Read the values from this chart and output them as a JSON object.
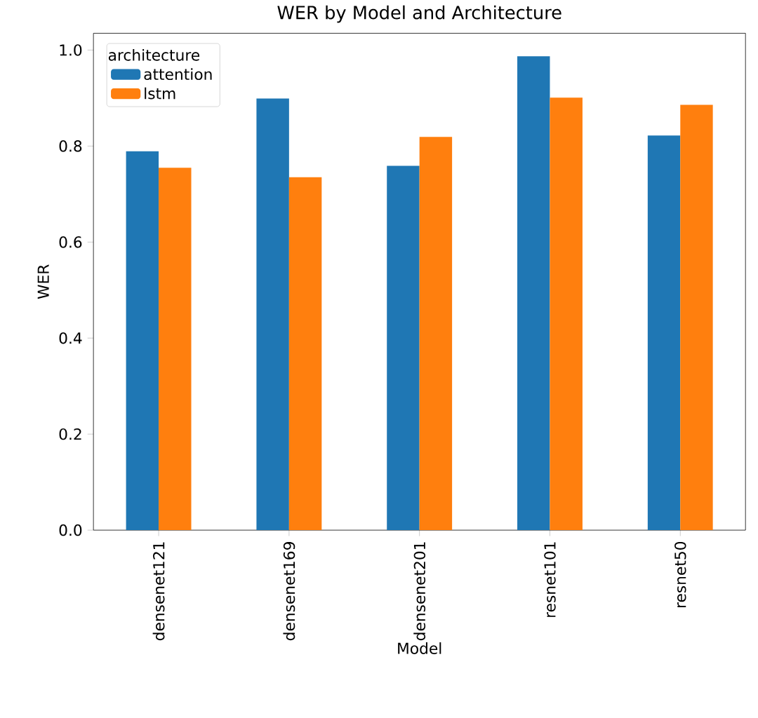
{
  "chart_data": {
    "type": "bar",
    "title": "WER by Model and Architecture",
    "xlabel": "Model",
    "ylabel": "WER",
    "legend_title": "architecture",
    "legend": "top left",
    "categories": [
      "densenet121",
      "densenet169",
      "densenet201",
      "resnet101",
      "resnet50"
    ],
    "series": [
      {
        "name": "attention",
        "color": "#1f77b4",
        "values": [
          0.789,
          0.899,
          0.759,
          0.987,
          0.822
        ]
      },
      {
        "name": "lstm",
        "color": "#ff7f0e",
        "values": [
          0.755,
          0.735,
          0.819,
          0.901,
          0.886
        ]
      }
    ],
    "ylim": [
      0,
      1.035
    ],
    "yticks": [
      {
        "value": 0,
        "label": "0.0"
      },
      0.2,
      0.4,
      0.6,
      0.8,
      {
        "value": 1,
        "label": "1.0"
      }
    ]
  }
}
